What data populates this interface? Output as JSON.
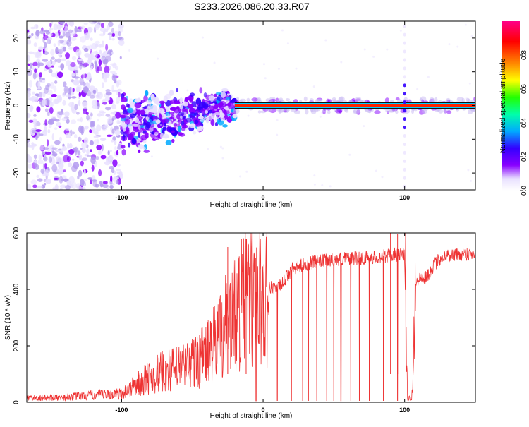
{
  "figure_title": "S233.2026.086.20.33.R07",
  "chart_data": [
    {
      "type": "heatmap",
      "title": "S233.2026.086.20.33.R07",
      "xlabel": "Height of straight line (km)",
      "ylabel": "Frequency (Hz)",
      "xlim": [
        -167,
        150
      ],
      "ylim": [
        -25,
        25
      ],
      "xticks": [
        -100,
        0,
        100
      ],
      "xtick_labels": [
        "-100",
        "0",
        "100"
      ],
      "yticks": [
        -20,
        -10,
        0,
        10,
        20
      ],
      "ytick_labels": [
        "-20",
        "-10",
        "0",
        "10",
        "20"
      ],
      "grid": false,
      "colorbar": {
        "label": "Normalized spectral amplitude",
        "range": [
          0,
          1
        ],
        "ticks": [
          0.0,
          0.2,
          0.4,
          0.6,
          0.8
        ],
        "tick_labels": [
          "0.0",
          "0.2",
          "0.4",
          "0.6",
          "0.8"
        ],
        "colors": [
          "#e8e0ff",
          "#8800ff",
          "#3300ff",
          "#00aaff",
          "#00ffaa",
          "#22ff00",
          "#ffff00",
          "#ff8800",
          "#ff0000",
          "#ff0088"
        ]
      },
      "features": {
        "noise_region_x": [
          -167,
          -100
        ],
        "spread_region_x": [
          -100,
          -20
        ],
        "narrow_line_x": [
          -20,
          150
        ],
        "line_frequency_hz": 0,
        "vertical_artifact_x": 100
      }
    },
    {
      "type": "line",
      "xlabel": "Height of straight line (km)",
      "ylabel": "SNR (10 * v/v)",
      "xlim": [
        -167,
        150
      ],
      "ylim": [
        0,
        600
      ],
      "xticks": [
        -100,
        0,
        100
      ],
      "xtick_labels": [
        "-100",
        "0",
        "100"
      ],
      "yticks": [
        0,
        200,
        400,
        600
      ],
      "ytick_labels": [
        "0",
        "200",
        "400",
        "600"
      ],
      "line_color": "#ee3333",
      "grid": false,
      "series": [
        {
          "name": "SNR",
          "x": [
            -167,
            -140,
            -120,
            -100,
            -90,
            -80,
            -70,
            -60,
            -50,
            -40,
            -35,
            -30,
            -25,
            -20,
            -15,
            -10,
            -5,
            0,
            5,
            10,
            15,
            20,
            25,
            30,
            40,
            50,
            60,
            70,
            80,
            90,
            95,
            100,
            102,
            105,
            108,
            110,
            115,
            120,
            125,
            130,
            140,
            150
          ],
          "values": [
            15,
            18,
            25,
            30,
            60,
            90,
            110,
            120,
            140,
            170,
            200,
            250,
            290,
            310,
            350,
            380,
            390,
            360,
            410,
            400,
            430,
            470,
            480,
            490,
            500,
            505,
            510,
            510,
            515,
            520,
            525,
            520,
            15,
            15,
            430,
            440,
            440,
            480,
            510,
            520,
            525,
            525
          ]
        }
      ],
      "dropouts_x": [
        -5,
        10,
        20,
        28,
        32,
        38,
        45,
        50,
        55,
        62,
        68,
        75,
        85,
        95
      ],
      "max_spikes": [
        [
          -25,
          550
        ],
        [
          -12,
          580
        ],
        [
          90,
          600
        ],
        [
          95,
          595
        ]
      ]
    }
  ]
}
